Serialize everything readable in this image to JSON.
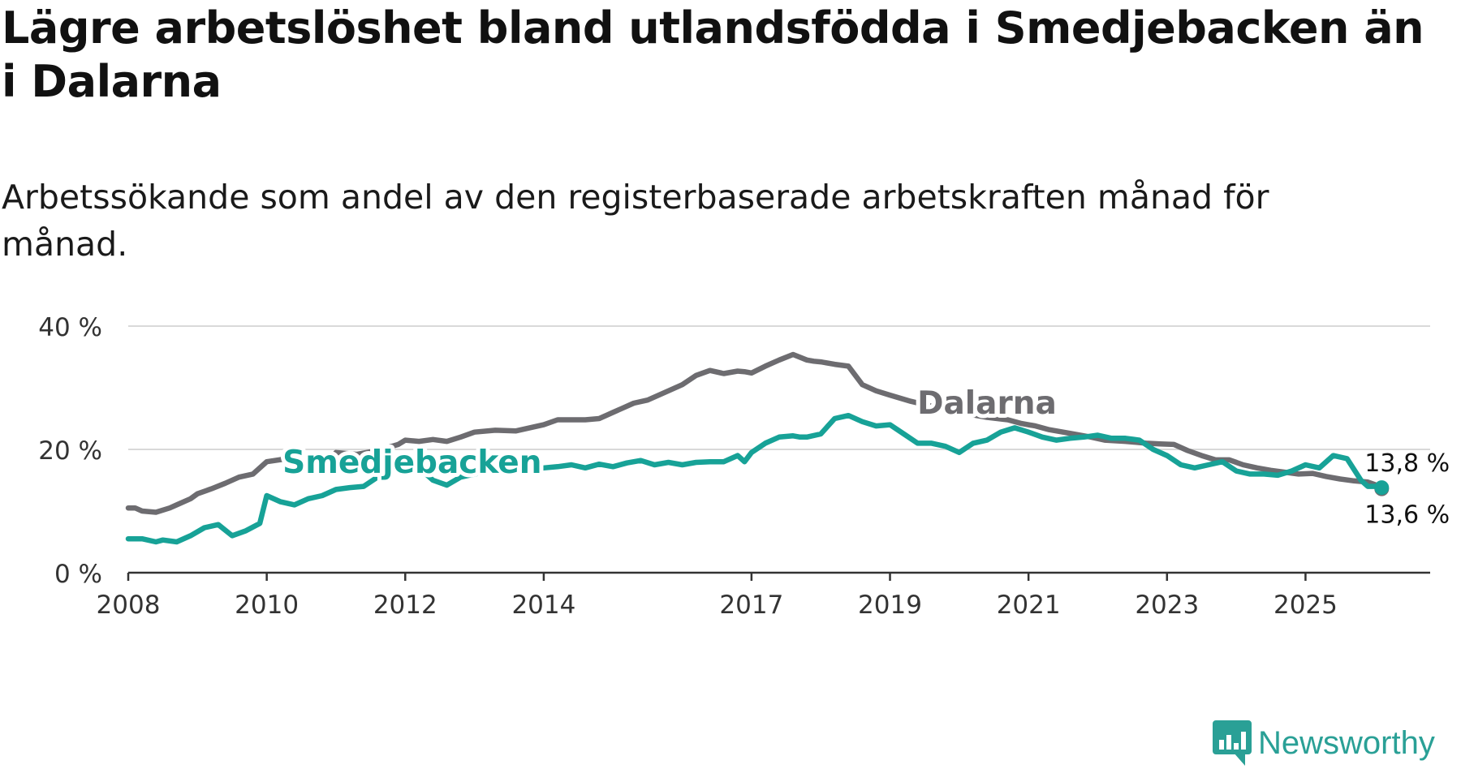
{
  "header": {
    "title": "Lägre arbetslöshet bland utlandsfödda i Smedjebacken än i Dalarna",
    "subtitle": "Arbetssökande som andel av den registerbaserade arbetskraften månad för månad."
  },
  "brand": {
    "name": "Newsworthy",
    "icon": "newsworthy-logo-icon",
    "color": "#2aa096"
  },
  "chart_data": {
    "type": "line",
    "title": "Lägre arbetslöshet bland utlandsfödda i Smedjebacken än i Dalarna",
    "subtitle": "Arbetssökande som andel av den registerbaserade arbetskraften månad för månad.",
    "xlabel": "",
    "ylabel": "",
    "ylim": [
      0,
      40
    ],
    "xlim": [
      2008,
      2026.8
    ],
    "yticks": [
      0,
      20,
      40
    ],
    "ytick_labels": [
      "0 %",
      "20 %",
      "40 %"
    ],
    "xticks": [
      2008,
      2010,
      2012,
      2014,
      2017,
      2019,
      2021,
      2023,
      2025
    ],
    "xtick_labels": [
      "2008",
      "2010",
      "2012",
      "2014",
      "2017",
      "2019",
      "2021",
      "2023",
      "2025"
    ],
    "grid": true,
    "series": [
      {
        "name": "Dalarna",
        "color": "#6d6c70",
        "label_at": [
          2020.4,
          27.5
        ],
        "end_label": "13,6 %",
        "x": [
          2008.0,
          2008.1,
          2008.2,
          2008.4,
          2008.6,
          2008.7,
          2008.9,
          2009.0,
          2009.2,
          2009.4,
          2009.6,
          2009.8,
          2010.0,
          2010.3,
          2010.6,
          2010.9,
          2011.0,
          2011.3,
          2011.6,
          2011.9,
          2012.0,
          2012.2,
          2012.4,
          2012.6,
          2012.8,
          2013.0,
          2013.3,
          2013.6,
          2014.0,
          2014.2,
          2014.6,
          2014.8,
          2015.0,
          2015.3,
          2015.5,
          2015.8,
          2016.0,
          2016.2,
          2016.4,
          2016.6,
          2016.8,
          2016.9,
          2017.0,
          2017.2,
          2017.4,
          2017.6,
          2017.8,
          2017.9,
          2018.0,
          2018.2,
          2018.4,
          2018.6,
          2018.8,
          2019.0,
          2019.3,
          2019.6,
          2019.9,
          2020.1,
          2020.4,
          2020.7,
          2020.9,
          2021.1,
          2021.3,
          2021.6,
          2021.9,
          2022.1,
          2022.4,
          2022.7,
          2022.9,
          2023.1,
          2023.3,
          2023.5,
          2023.7,
          2023.9,
          2024.1,
          2024.3,
          2024.5,
          2024.7,
          2024.9,
          2025.1,
          2025.3,
          2025.5,
          2025.7,
          2025.9,
          2026.0,
          2026.1
        ],
        "values": [
          10.5,
          10.5,
          10.0,
          9.8,
          10.5,
          11.0,
          12.0,
          12.8,
          13.6,
          14.5,
          15.5,
          16.0,
          18.0,
          18.5,
          18.3,
          18.4,
          19.5,
          19.2,
          19.8,
          20.8,
          21.5,
          21.3,
          21.6,
          21.3,
          22.0,
          22.8,
          23.1,
          23.0,
          24.0,
          24.8,
          24.8,
          25.0,
          26.0,
          27.5,
          28.0,
          29.5,
          30.5,
          32.0,
          32.8,
          32.3,
          32.7,
          32.6,
          32.4,
          33.5,
          34.5,
          35.4,
          34.5,
          34.3,
          34.2,
          33.8,
          33.5,
          30.5,
          29.5,
          28.8,
          27.8,
          27.0,
          26.3,
          25.8,
          25.2,
          24.8,
          24.2,
          23.8,
          23.2,
          22.6,
          22.0,
          21.5,
          21.3,
          21.0,
          20.9,
          20.8,
          19.8,
          19.0,
          18.3,
          18.3,
          17.5,
          17.0,
          16.6,
          16.3,
          16.0,
          16.1,
          15.6,
          15.2,
          14.9,
          14.7,
          14.3,
          13.6
        ]
      },
      {
        "name": "Smedjebacken",
        "color": "#17a297",
        "label_at": [
          2012.1,
          17.9
        ],
        "end_label": "13,8 %",
        "x": [
          2008.0,
          2008.2,
          2008.4,
          2008.5,
          2008.7,
          2008.9,
          2009.1,
          2009.3,
          2009.5,
          2009.7,
          2009.9,
          2010.0,
          2010.2,
          2010.4,
          2010.6,
          2010.8,
          2011.0,
          2011.2,
          2011.4,
          2011.6,
          2011.8,
          2012.0,
          2012.2,
          2012.4,
          2012.6,
          2012.8,
          2013.0,
          2013.2,
          2013.4,
          2013.6,
          2013.8,
          2014.0,
          2014.2,
          2014.4,
          2014.6,
          2014.8,
          2015.0,
          2015.2,
          2015.4,
          2015.6,
          2015.8,
          2016.0,
          2016.2,
          2016.4,
          2016.6,
          2016.8,
          2016.9,
          2017.0,
          2017.2,
          2017.4,
          2017.6,
          2017.7,
          2017.8,
          2018.0,
          2018.2,
          2018.4,
          2018.6,
          2018.8,
          2019.0,
          2019.2,
          2019.4,
          2019.6,
          2019.8,
          2020.0,
          2020.2,
          2020.4,
          2020.6,
          2020.8,
          2021.0,
          2021.2,
          2021.4,
          2021.6,
          2021.8,
          2022.0,
          2022.2,
          2022.4,
          2022.6,
          2022.8,
          2023.0,
          2023.2,
          2023.4,
          2023.6,
          2023.8,
          2024.0,
          2024.2,
          2024.4,
          2024.6,
          2024.8,
          2025.0,
          2025.2,
          2025.4,
          2025.6,
          2025.8,
          2025.9,
          2026.0,
          2026.1
        ],
        "values": [
          5.5,
          5.5,
          5.0,
          5.3,
          5.0,
          6.0,
          7.3,
          7.8,
          6.0,
          6.8,
          8.0,
          12.5,
          11.5,
          11.0,
          12.0,
          12.5,
          13.5,
          13.8,
          14.0,
          15.5,
          16.5,
          18.0,
          17.0,
          15.0,
          14.2,
          15.5,
          16.0,
          16.5,
          16.5,
          16.2,
          16.8,
          17.0,
          17.2,
          17.5,
          17.0,
          17.6,
          17.2,
          17.8,
          18.2,
          17.5,
          17.9,
          17.5,
          17.9,
          18.0,
          18.0,
          19.0,
          18.0,
          19.5,
          21.0,
          22.0,
          22.2,
          22.0,
          22.0,
          22.5,
          25.0,
          25.5,
          24.5,
          23.8,
          24.0,
          22.5,
          21.0,
          21.0,
          20.5,
          19.5,
          21.0,
          21.5,
          22.8,
          23.5,
          22.8,
          22.0,
          21.5,
          21.8,
          22.0,
          22.3,
          21.8,
          21.8,
          21.5,
          20.0,
          19.0,
          17.5,
          17.0,
          17.5,
          18.0,
          16.5,
          16.0,
          16.0,
          15.8,
          16.5,
          17.5,
          17.0,
          19.0,
          18.5,
          15.0,
          14.0,
          14.0,
          13.8
        ]
      }
    ]
  }
}
